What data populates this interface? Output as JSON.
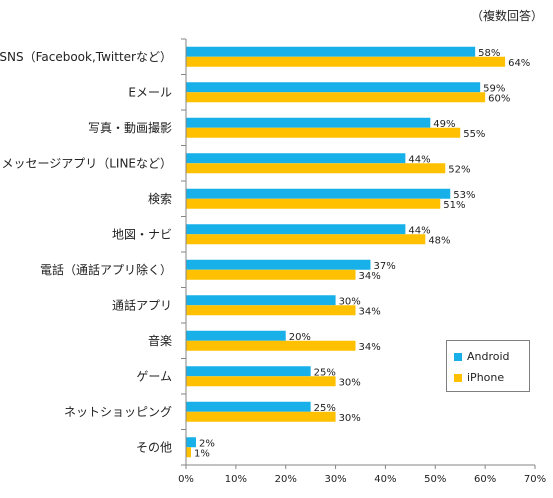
{
  "note": "（複数回答）",
  "chart_data": {
    "type": "bar",
    "orientation": "horizontal",
    "categories": [
      "SNS（Facebook,Twitterなど）",
      "Eメール",
      "写真・動画撮影",
      "メッセージアプリ（LINEなど）",
      "検索",
      "地図・ナビ",
      "電話（通話アプリ除く）",
      "通話アプリ",
      "音楽",
      "ゲーム",
      "ネットショッピング",
      "その他"
    ],
    "series": [
      {
        "name": "Android",
        "color": "#17b0e8",
        "values": [
          58,
          59,
          49,
          44,
          53,
          44,
          37,
          30,
          20,
          25,
          25,
          2
        ]
      },
      {
        "name": "iPhone",
        "color": "#ffc000",
        "values": [
          64,
          60,
          55,
          52,
          51,
          48,
          34,
          34,
          34,
          30,
          30,
          1
        ]
      }
    ],
    "data_label_suffix": "%",
    "xlim": [
      0,
      70
    ],
    "xticks": [
      "0%",
      "10%",
      "20%",
      "30%",
      "40%",
      "50%",
      "60%",
      "70%"
    ],
    "grid": false,
    "legend_position": "bottom-right"
  }
}
